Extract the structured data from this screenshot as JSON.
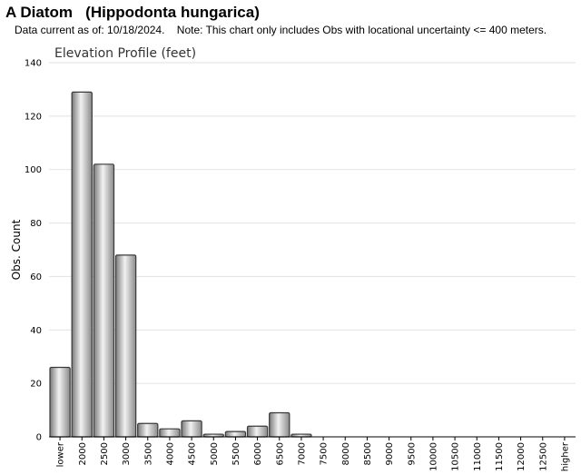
{
  "header": {
    "title": "A Diatom   (Hippodonta hungarica)",
    "subtitle": "Data current as of: 10/18/2024.    Note: This chart only includes Obs with locational uncertainty <= 400 meters."
  },
  "chart_data": {
    "type": "bar",
    "title": "Elevation Profile (feet)",
    "xlabel": "",
    "ylabel": "Obs. Count",
    "ylim": [
      0,
      140
    ],
    "yticks": [
      0,
      20,
      40,
      60,
      80,
      100,
      120,
      140
    ],
    "grid": true,
    "categories": [
      "lower",
      "2000",
      "2500",
      "3000",
      "3500",
      "4000",
      "4500",
      "5000",
      "5500",
      "6000",
      "6500",
      "7000",
      "7500",
      "8000",
      "8500",
      "9000",
      "9500",
      "10000",
      "10500",
      "11000",
      "11500",
      "12000",
      "12500",
      "higher"
    ],
    "values": [
      26,
      129,
      102,
      68,
      5,
      3,
      6,
      1,
      2,
      4,
      9,
      1,
      0,
      0,
      0,
      0,
      0,
      0,
      0,
      0,
      0,
      0,
      0,
      0
    ],
    "bar_color": "#b0b0b0"
  }
}
